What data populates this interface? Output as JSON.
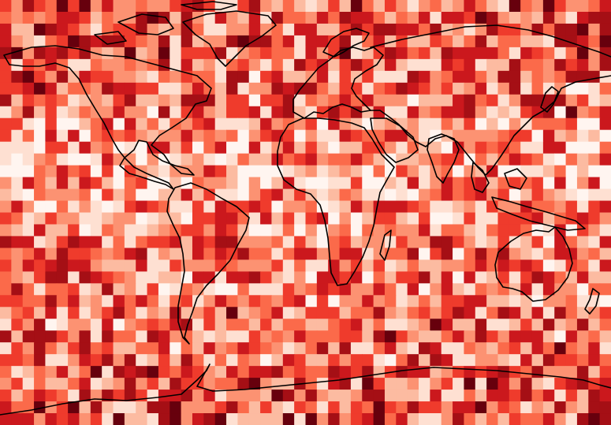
{
  "map": {
    "kind": "global gridded heatmap",
    "projection": "equirectangular",
    "colormap": {
      "name": "Reds",
      "stops": [
        "#fff5f0",
        "#fee0d2",
        "#fcbba1",
        "#fc9272",
        "#fb6a4a",
        "#ef3b2c",
        "#cb181d",
        "#a50f15",
        "#67000d"
      ]
    },
    "grid": {
      "columns": 54,
      "rows": 36,
      "cell_degrees": 6.67
    },
    "coastline_color": "#000000",
    "seed": 73129
  }
}
